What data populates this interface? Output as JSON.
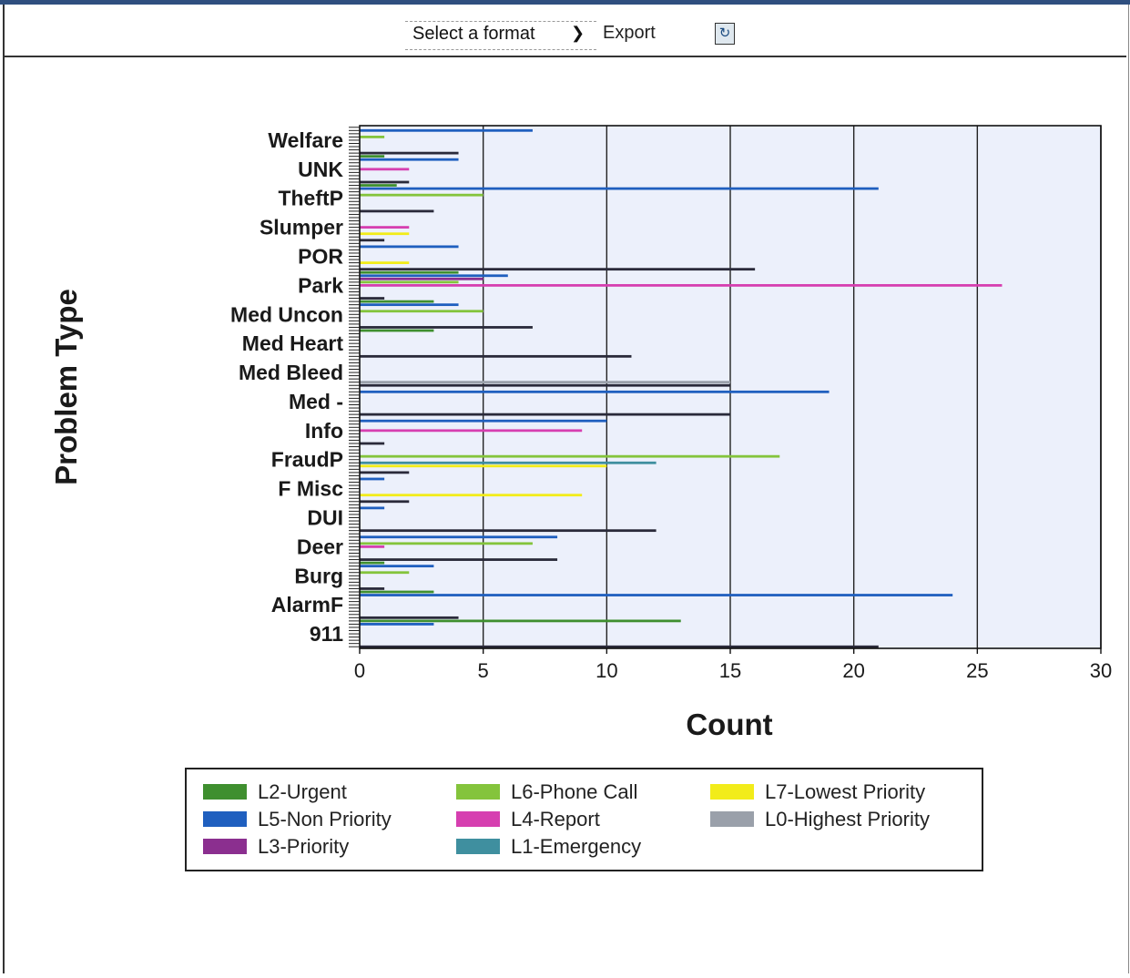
{
  "toolbar": {
    "format_select": "Select a format",
    "export_label": "Export",
    "refresh_icon": "refresh-icon"
  },
  "colors": {
    "plot_background": "#ecf0fb",
    "grid": "#222222"
  },
  "chart_data": {
    "type": "bar",
    "orientation": "horizontal",
    "xlabel": "Count",
    "ylabel": "Problem Type",
    "xlim": [
      0,
      30
    ],
    "xticks": [
      0,
      5,
      10,
      15,
      20,
      25,
      30
    ],
    "grid": true,
    "legend_position": "bottom",
    "categories": [
      "Welfare",
      "UNK",
      "TheftP",
      "Slumper",
      "POR",
      "Park",
      "Med Uncon",
      "Med Heart",
      "Med Bleed",
      "Med -",
      "Info",
      "FraudP",
      "F Misc",
      "DUI",
      "Deer",
      "Burg",
      "AlarmF",
      "911"
    ],
    "series": [
      {
        "name": "L2-Urgent",
        "color": "#3f8f2f",
        "values": [
          0,
          1,
          1.5,
          0,
          0,
          4,
          3,
          3,
          0,
          0,
          0,
          0,
          0,
          0,
          0,
          1,
          3,
          13
        ]
      },
      {
        "name": "L5-Non Priority",
        "color": "#1f5fbf",
        "values": [
          7,
          4,
          21,
          0,
          4,
          6,
          4,
          0,
          0,
          19,
          10,
          0,
          1,
          1,
          8,
          3,
          24,
          3
        ]
      },
      {
        "name": "L3-Priority",
        "color": "#8b2f8f",
        "values": [
          0,
          0,
          0,
          0,
          0,
          5,
          0,
          0,
          0,
          0,
          0,
          0,
          0,
          0,
          0,
          0,
          0,
          0
        ]
      },
      {
        "name": "L6-Phone Call",
        "color": "#84c43c",
        "values": [
          1,
          0,
          5,
          0,
          0,
          4,
          5,
          0,
          0,
          0,
          0,
          17,
          0,
          0,
          7,
          2,
          0,
          0
        ]
      },
      {
        "name": "L4-Report",
        "color": "#d63fb0",
        "values": [
          0,
          2,
          0,
          2,
          0,
          26,
          0,
          0,
          0,
          0,
          9,
          0,
          0,
          0,
          1,
          0,
          0,
          0
        ]
      },
      {
        "name": "L1-Emergency",
        "color": "#3f8f9f",
        "values": [
          0,
          0,
          0,
          0,
          0,
          0,
          0,
          0,
          0,
          0,
          0,
          12,
          0,
          0,
          0,
          0,
          0,
          0
        ]
      },
      {
        "name": "L7-Lowest Priority",
        "color": "#f2ec1a",
        "values": [
          0,
          0,
          0,
          2,
          2,
          0,
          0,
          0,
          0,
          0,
          0,
          10,
          9,
          0,
          0,
          0,
          0,
          0
        ]
      },
      {
        "name": "L0-Highest Priority",
        "color": "#9aa0aa",
        "values": [
          0,
          0,
          0,
          0,
          0,
          0,
          0,
          0,
          15,
          0,
          0,
          0,
          0,
          0,
          0,
          0,
          0,
          0
        ]
      },
      {
        "name": "",
        "color": "#2a2a3a",
        "values": [
          4,
          2,
          3,
          1,
          16,
          1,
          7,
          11,
          15,
          15,
          1,
          2,
          2,
          12,
          8,
          1,
          4,
          21
        ]
      }
    ],
    "legend": [
      {
        "label": "L2-Urgent",
        "color": "#3f8f2f"
      },
      {
        "label": "L6-Phone Call",
        "color": "#84c43c"
      },
      {
        "label": "L7-Lowest Priority",
        "color": "#f2ec1a"
      },
      {
        "label": "L5-Non Priority",
        "color": "#1f5fbf"
      },
      {
        "label": "L4-Report",
        "color": "#d63fb0"
      },
      {
        "label": "L0-Highest Priority",
        "color": "#9aa0aa"
      },
      {
        "label": "L3-Priority",
        "color": "#8b2f8f"
      },
      {
        "label": "L1-Emergency",
        "color": "#3f8f9f"
      }
    ]
  }
}
